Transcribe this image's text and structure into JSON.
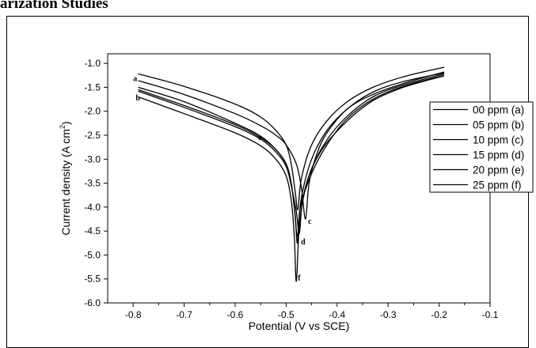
{
  "heading": "arization Studies",
  "chart_data": {
    "type": "line",
    "xlabel": "Potential (V vs SCE)",
    "ylabel_main": "Current density (A cm",
    "ylabel_sup": "2",
    "ylabel_end": ")",
    "xlim": [
      -0.85,
      -0.1
    ],
    "ylim": [
      -6.0,
      -0.8
    ],
    "x_ticks": [
      -0.8,
      -0.7,
      -0.6,
      -0.5,
      -0.4,
      -0.3,
      -0.2,
      -0.1
    ],
    "x_tick_labels": [
      "-0.8",
      "-0.7",
      "-0.6",
      "-0.5",
      "-0.4",
      "-0.3",
      "-0.2",
      "-0.1"
    ],
    "y_ticks": [
      -1.0,
      -1.5,
      -2.0,
      -2.5,
      -3.0,
      -3.5,
      -4.0,
      -4.5,
      -5.0,
      -5.5,
      -6.0
    ],
    "y_tick_labels": [
      "-1.0",
      "-1.5",
      "-2.0",
      "-2.5",
      "-3.0",
      "-3.5",
      "-4.0",
      "-4.5",
      "-5.0",
      "-5.5",
      "-6.0"
    ],
    "legend_position": "right",
    "series": [
      {
        "name": "00 ppm (a)",
        "tag": "a",
        "color": "#000000",
        "x": [
          -0.79,
          -0.7,
          -0.6,
          -0.55,
          -0.52,
          -0.5,
          -0.49,
          -0.482,
          -0.477,
          -0.47,
          -0.45,
          -0.42,
          -0.38,
          -0.33,
          -0.27,
          -0.19
        ],
        "y": [
          -1.22,
          -1.48,
          -1.85,
          -2.12,
          -2.4,
          -2.7,
          -3.1,
          -3.7,
          -4.05,
          -3.4,
          -2.7,
          -2.2,
          -1.8,
          -1.5,
          -1.28,
          -1.08
        ]
      },
      {
        "name": "05 ppm (b)",
        "tag": "b",
        "color": "#000000",
        "x": [
          -0.79,
          -0.7,
          -0.6,
          -0.55,
          -0.52,
          -0.5,
          -0.49,
          -0.483,
          -0.478,
          -0.47,
          -0.45,
          -0.42,
          -0.38,
          -0.33,
          -0.27,
          -0.19
        ],
        "y": [
          -1.5,
          -1.8,
          -2.25,
          -2.52,
          -2.8,
          -3.1,
          -3.5,
          -4.1,
          -4.6,
          -3.8,
          -3.0,
          -2.4,
          -1.95,
          -1.6,
          -1.38,
          -1.2
        ]
      },
      {
        "name": "10 ppm (c)",
        "tag": "c",
        "color": "#000000",
        "x": [
          -0.79,
          -0.7,
          -0.6,
          -0.55,
          -0.52,
          -0.5,
          -0.48,
          -0.47,
          -0.462,
          -0.455,
          -0.44,
          -0.42,
          -0.38,
          -0.33,
          -0.27,
          -0.19
        ],
        "y": [
          -1.36,
          -1.65,
          -2.05,
          -2.3,
          -2.5,
          -2.7,
          -3.1,
          -3.6,
          -4.25,
          -3.5,
          -2.9,
          -2.45,
          -1.95,
          -1.65,
          -1.42,
          -1.18
        ]
      },
      {
        "name": "15 ppm (d)",
        "tag": "d",
        "color": "#000000",
        "x": [
          -0.79,
          -0.7,
          -0.6,
          -0.55,
          -0.52,
          -0.5,
          -0.49,
          -0.48,
          -0.474,
          -0.468,
          -0.45,
          -0.42,
          -0.38,
          -0.33,
          -0.27,
          -0.19
        ],
        "y": [
          -1.58,
          -1.92,
          -2.32,
          -2.58,
          -2.85,
          -3.15,
          -3.55,
          -4.1,
          -4.55,
          -3.9,
          -3.2,
          -2.6,
          -2.1,
          -1.7,
          -1.45,
          -1.22
        ]
      },
      {
        "name": "20 ppm (e)",
        "tag": "e",
        "color": "#000000",
        "x": [
          -0.79,
          -0.7,
          -0.6,
          -0.55,
          -0.52,
          -0.5,
          -0.49,
          -0.482,
          -0.478,
          -0.472,
          -0.45,
          -0.42,
          -0.38,
          -0.33,
          -0.27,
          -0.19
        ],
        "y": [
          -1.55,
          -1.88,
          -2.28,
          -2.55,
          -2.8,
          -3.1,
          -3.5,
          -4.2,
          -4.75,
          -4.0,
          -3.3,
          -2.7,
          -2.15,
          -1.75,
          -1.48,
          -1.25
        ]
      },
      {
        "name": "25 ppm (f)",
        "tag": "f",
        "color": "#000000",
        "x": [
          -0.79,
          -0.7,
          -0.6,
          -0.55,
          -0.52,
          -0.5,
          -0.49,
          -0.484,
          -0.48,
          -0.474,
          -0.46,
          -0.43,
          -0.38,
          -0.33,
          -0.27,
          -0.19
        ],
        "y": [
          -1.7,
          -2.05,
          -2.45,
          -2.72,
          -3.0,
          -3.35,
          -3.85,
          -4.6,
          -5.55,
          -4.4,
          -3.5,
          -2.8,
          -2.2,
          -1.78,
          -1.5,
          -1.26
        ]
      }
    ],
    "annotations": [
      {
        "text": "a",
        "x": -0.8,
        "y": -1.37
      },
      {
        "text": "b",
        "x": -0.795,
        "y": -1.77
      },
      {
        "text": "e",
        "x": -0.555,
        "y": -2.6
      },
      {
        "text": "c",
        "x": -0.457,
        "y": -4.35
      },
      {
        "text": "d",
        "x": -0.471,
        "y": -4.78
      },
      {
        "text": "f",
        "x": -0.477,
        "y": -5.53
      }
    ]
  }
}
